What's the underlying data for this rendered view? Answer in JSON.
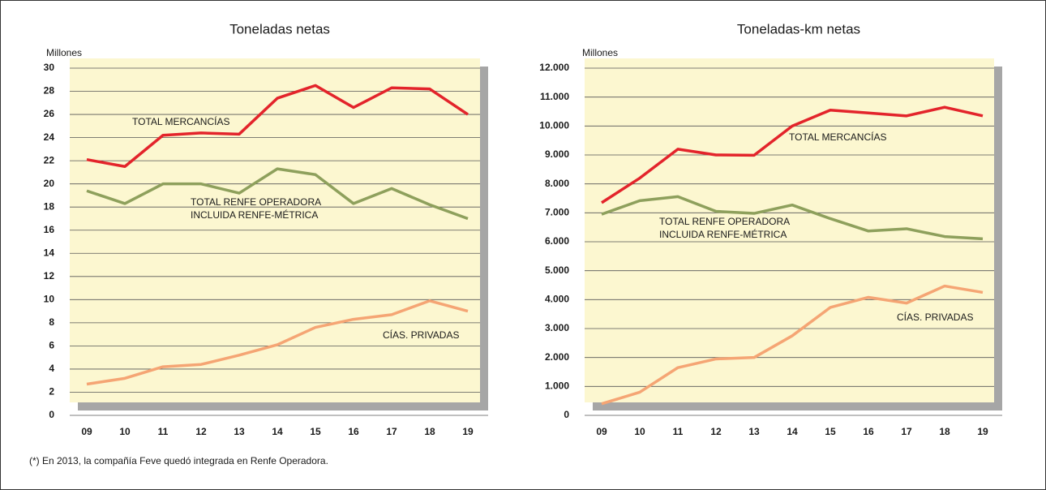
{
  "chart_data": [
    {
      "type": "line",
      "title": "Toneladas netas",
      "y_label": "Millones",
      "categories": [
        "09",
        "10",
        "11",
        "12",
        "13",
        "14",
        "15",
        "16",
        "17",
        "18",
        "19"
      ],
      "ylim": [
        0,
        30
      ],
      "yticks": [
        0,
        2,
        4,
        6,
        8,
        10,
        12,
        14,
        16,
        18,
        20,
        22,
        24,
        26,
        28,
        30
      ],
      "grid": true,
      "series": [
        {
          "label_lines": [
            "TOTAL MERCANCÍAS"
          ],
          "color": "#e3242b",
          "values": [
            22.1,
            21.5,
            24.2,
            24.4,
            24.3,
            27.4,
            28.5,
            26.6,
            28.3,
            28.2,
            26.0
          ]
        },
        {
          "label_lines": [
            "TOTAL RENFE OPERADORA",
            "INCLUIDA RENFE-MÉTRICA"
          ],
          "color": "#8ea05c",
          "values": [
            19.4,
            18.3,
            20.0,
            20.0,
            19.2,
            21.3,
            20.8,
            18.3,
            19.6,
            18.2,
            17.0
          ]
        },
        {
          "label_lines": [
            "CÍAS. PRIVADAS"
          ],
          "color": "#f5a574",
          "values": [
            2.7,
            3.2,
            4.2,
            4.4,
            5.2,
            6.1,
            7.6,
            8.3,
            8.7,
            9.9,
            9.0
          ]
        }
      ]
    },
    {
      "type": "line",
      "title": "Toneladas-km netas",
      "y_label": "Millones",
      "categories": [
        "09",
        "10",
        "11",
        "12",
        "13",
        "14",
        "15",
        "16",
        "17",
        "18",
        "19"
      ],
      "ylim": [
        0,
        12000
      ],
      "yticks": [
        0,
        {
          "value": 1000,
          "label": "1.000"
        },
        {
          "value": 2000,
          "label": "2.000"
        },
        {
          "value": 3000,
          "label": "3.000"
        },
        {
          "value": 4000,
          "label": "4.000"
        },
        {
          "value": 5000,
          "label": "5.000"
        },
        {
          "value": 6000,
          "label": "6.000"
        },
        {
          "value": 7000,
          "label": "7.000"
        },
        {
          "value": 8000,
          "label": "8.000"
        },
        {
          "value": 9000,
          "label": "9.000"
        },
        {
          "value": 10000,
          "label": "10.000"
        },
        {
          "value": 11000,
          "label": "11.000"
        },
        {
          "value": 12000,
          "label": "12.000"
        }
      ],
      "grid": true,
      "series": [
        {
          "label_lines": [
            "TOTAL MERCANCÍAS"
          ],
          "color": "#e3242b",
          "values": [
            7350,
            8200,
            9200,
            9000,
            8990,
            10000,
            10550,
            10450,
            10350,
            10650,
            10350
          ]
        },
        {
          "label_lines": [
            "TOTAL RENFE OPERADORA",
            "INCLUIDA RENFE-MÉTRICA"
          ],
          "color": "#8ea05c",
          "values": [
            6950,
            7420,
            7560,
            7050,
            6980,
            7270,
            6800,
            6370,
            6450,
            6180,
            6100
          ]
        },
        {
          "label_lines": [
            "CÍAS. PRIVADAS"
          ],
          "color": "#f5a574",
          "values": [
            400,
            800,
            1650,
            1950,
            2000,
            2750,
            3730,
            4080,
            3880,
            4470,
            4250
          ]
        }
      ]
    }
  ],
  "footnote": "(*) En 2013, la compañía Feve quedó integrada en Renfe Operadora."
}
